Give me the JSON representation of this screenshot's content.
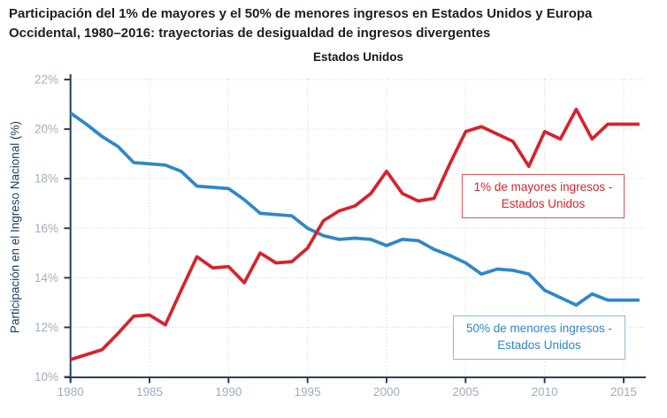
{
  "header": {
    "title_line1": "Participación del 1% de mayores y el 50% de menores ingresos en Estados Unidos y Europa",
    "title_line2": "Occidental, 1980–2016: trayectorias de desigualdad de ingresos divergentes"
  },
  "chart_data": {
    "type": "line",
    "title": "Estados Unidos",
    "xlabel": "",
    "ylabel": "Participación en el Ingreso Nacional (%)",
    "xlim": [
      1980,
      2016.4
    ],
    "ylim": [
      10,
      22
    ],
    "grid": true,
    "legend_position": "annotation-boxes-inside-plot",
    "x_ticks": [
      1980,
      1985,
      1990,
      1995,
      2000,
      2005,
      2010,
      2015
    ],
    "y_ticks": [
      10,
      12,
      14,
      16,
      18,
      20,
      22
    ],
    "y_tick_suffix": "%",
    "x": [
      1980,
      1981,
      1982,
      1983,
      1984,
      1985,
      1986,
      1987,
      1988,
      1989,
      1990,
      1991,
      1992,
      1993,
      1994,
      1995,
      1996,
      1997,
      1998,
      1999,
      2000,
      2001,
      2002,
      2003,
      2004,
      2005,
      2006,
      2007,
      2008,
      2009,
      2010,
      2011,
      2012,
      2013,
      2014,
      2015,
      2016
    ],
    "series": [
      {
        "name": "1% de mayores ingresos - Estados Unidos",
        "color": "#d7222c",
        "values": [
          10.7,
          10.9,
          11.1,
          11.75,
          12.45,
          12.5,
          12.1,
          13.5,
          14.85,
          14.4,
          14.45,
          13.8,
          15.0,
          14.6,
          14.65,
          15.2,
          16.3,
          16.7,
          16.9,
          17.4,
          18.3,
          17.4,
          17.1,
          17.2,
          18.6,
          19.9,
          20.1,
          19.8,
          19.5,
          18.5,
          19.9,
          19.6,
          20.8,
          19.6,
          20.2,
          20.2,
          20.2
        ]
      },
      {
        "name": "50% de menores ingresos - Estados Unidos",
        "color": "#2f87c6",
        "values": [
          20.65,
          20.2,
          19.7,
          19.3,
          18.65,
          18.6,
          18.55,
          18.3,
          17.7,
          17.65,
          17.6,
          17.15,
          16.6,
          16.55,
          16.5,
          16.0,
          15.7,
          15.55,
          15.6,
          15.55,
          15.3,
          15.55,
          15.5,
          15.15,
          14.9,
          14.6,
          14.15,
          14.35,
          14.3,
          14.15,
          13.5,
          13.2,
          12.9,
          13.35,
          13.1,
          13.1,
          13.1
        ]
      }
    ],
    "annotations": [
      {
        "line1": "1% de mayores ingresos -",
        "line2": "Estados Unidos",
        "text_color": "#d7222c",
        "border_color": "#e25158"
      },
      {
        "line1": "50% de menores ingresos -",
        "line2": "Estados Unidos",
        "text_color": "#2e86c5",
        "border_color": "#8bb9dc"
      }
    ],
    "style": {
      "axis_color": "#24405e",
      "tick_label_color": "#9fadbd",
      "gridline_color": "#c9cdd1",
      "background": "#ffffff"
    }
  }
}
